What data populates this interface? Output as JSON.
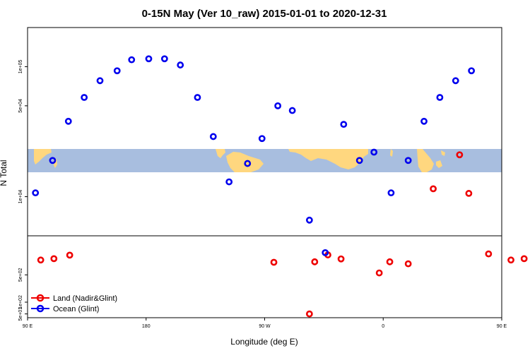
{
  "chart_data": {
    "type": "scatter",
    "title": "0-15N May (Ver 10_raw)   2015-01-01 to 2020-12-31",
    "xlabel": "Longitude (deg E)",
    "ylabel": "N Total",
    "xlim": [
      90,
      450
    ],
    "x_ticks": [
      {
        "value": 90,
        "label": "90 E"
      },
      {
        "value": 180,
        "label": "180"
      },
      {
        "value": 270,
        "label": "90 W"
      },
      {
        "value": 360,
        "label": "0"
      },
      {
        "value": 450,
        "label": "90 E"
      },
      {
        "value": 540,
        "label": "180"
      }
    ],
    "lower_panel": {
      "scale": "log",
      "ylim": [
        40,
        5000
      ],
      "y_ticks": [
        {
          "value": 50,
          "label": "5e+01"
        },
        {
          "value": 100,
          "label": "1e+02"
        },
        {
          "value": 500,
          "label": "5e+02"
        }
      ]
    },
    "upper_panel": {
      "scale": "log",
      "ylim": [
        5000,
        200000
      ],
      "y_ticks": [
        {
          "value": 10000,
          "label": "1e+04"
        },
        {
          "value": 50000,
          "label": "5e+04"
        },
        {
          "value": 100000,
          "label": "1e+05"
        }
      ]
    },
    "series": [
      {
        "name": "Land (Nadir&Glint)",
        "color": "#ee0000",
        "points": [
          {
            "x": 100,
            "y": 1200
          },
          {
            "x": 110,
            "y": 1300
          },
          {
            "x": 122,
            "y": 1600
          },
          {
            "x": 277,
            "y": 1050
          },
          {
            "x": 304,
            "y": 50
          },
          {
            "x": 308,
            "y": 1080
          },
          {
            "x": 318,
            "y": 1620
          },
          {
            "x": 328,
            "y": 1280
          },
          {
            "x": 357,
            "y": 560
          },
          {
            "x": 365,
            "y": 1080
          },
          {
            "x": 379,
            "y": 960
          },
          {
            "x": 398,
            "y": 11500
          },
          {
            "x": 418,
            "y": 21000
          },
          {
            "x": 425,
            "y": 10600
          },
          {
            "x": 440,
            "y": 1720
          },
          {
            "x": 457,
            "y": 1200
          },
          {
            "x": 467,
            "y": 1300
          },
          {
            "x": 478,
            "y": 1600
          }
        ]
      },
      {
        "name": "Ocean (Glint)",
        "color": "#0000ee",
        "points": [
          {
            "x": 96,
            "y": 10700
          },
          {
            "x": 109,
            "y": 19000
          },
          {
            "x": 121,
            "y": 38000
          },
          {
            "x": 133,
            "y": 58000
          },
          {
            "x": 145,
            "y": 78000
          },
          {
            "x": 158,
            "y": 93000
          },
          {
            "x": 169,
            "y": 113000
          },
          {
            "x": 182,
            "y": 115000
          },
          {
            "x": 194,
            "y": 115000
          },
          {
            "x": 206,
            "y": 103000
          },
          {
            "x": 219,
            "y": 58000
          },
          {
            "x": 231,
            "y": 29000
          },
          {
            "x": 243,
            "y": 13000
          },
          {
            "x": 257,
            "y": 18000
          },
          {
            "x": 268,
            "y": 28000
          },
          {
            "x": 280,
            "y": 50000
          },
          {
            "x": 291,
            "y": 46000
          },
          {
            "x": 304,
            "y": 6600
          },
          {
            "x": 316,
            "y": 1850
          },
          {
            "x": 330,
            "y": 36000
          },
          {
            "x": 342,
            "y": 19000
          },
          {
            "x": 353,
            "y": 22000
          },
          {
            "x": 366,
            "y": 10700
          },
          {
            "x": 379,
            "y": 19000
          },
          {
            "x": 391,
            "y": 38000
          },
          {
            "x": 403,
            "y": 58000
          },
          {
            "x": 415,
            "y": 78000
          },
          {
            "x": 427,
            "y": 93000
          }
        ]
      }
    ],
    "legend": {
      "placement": "bottom-left",
      "entries": [
        "Land (Nadir&Glint)",
        "Ocean (Glint)"
      ]
    },
    "grid": false,
    "background": "world map (land #ffd77f, ocean #a8bedf) in middle band"
  }
}
